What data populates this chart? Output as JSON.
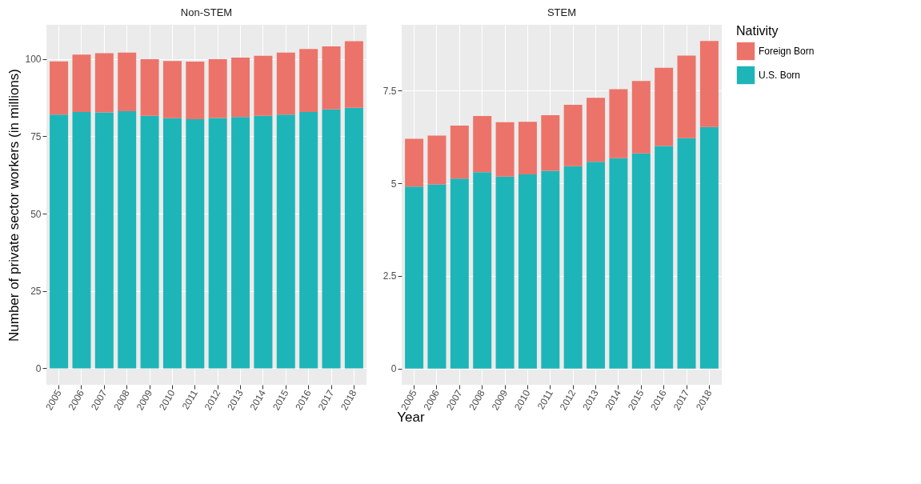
{
  "chart_data": [
    {
      "type": "bar",
      "title": "Non-STEM",
      "ylabel": "Number of private sector workers (in millions)",
      "xlabel": "Year",
      "stacked": true,
      "grid": true,
      "legend": "right",
      "categories": [
        "2005",
        "2006",
        "2007",
        "2008",
        "2009",
        "2010",
        "2011",
        "2012",
        "2013",
        "2014",
        "2015",
        "2016",
        "2017",
        "2018"
      ],
      "ylim": [
        -5.3,
        111
      ],
      "yticks": [
        0,
        25,
        50,
        75,
        100
      ],
      "series": [
        {
          "name": "U.S. Born",
          "color": "#1eb5b8",
          "values": [
            82.0,
            82.8,
            82.7,
            83.1,
            81.6,
            80.8,
            80.5,
            80.9,
            81.2,
            81.6,
            82.0,
            82.8,
            83.7,
            84.2
          ]
        },
        {
          "name": "Foreign Born",
          "color": "#ec7369",
          "values": [
            17.2,
            18.6,
            19.1,
            18.9,
            18.3,
            18.5,
            18.6,
            19.0,
            19.2,
            19.4,
            20.0,
            20.4,
            20.3,
            21.5
          ]
        }
      ]
    },
    {
      "type": "bar",
      "title": "STEM",
      "legend_title": "Nativity",
      "stacked": true,
      "grid": true,
      "legend": "right",
      "categories": [
        "2005",
        "2006",
        "2007",
        "2008",
        "2009",
        "2010",
        "2011",
        "2012",
        "2013",
        "2014",
        "2015",
        "2016",
        "2017",
        "2018"
      ],
      "ylim": [
        -0.44,
        9.28
      ],
      "yticks": [
        0,
        2.5,
        5,
        7.5
      ],
      "series": [
        {
          "name": "U.S. Born",
          "color": "#1eb5b8",
          "values": [
            4.91,
            4.97,
            5.13,
            5.3,
            5.18,
            5.24,
            5.34,
            5.46,
            5.58,
            5.68,
            5.81,
            6.01,
            6.22,
            6.52
          ]
        },
        {
          "name": "Foreign Born",
          "color": "#ec7369",
          "values": [
            1.29,
            1.32,
            1.43,
            1.52,
            1.47,
            1.42,
            1.5,
            1.66,
            1.73,
            1.86,
            1.95,
            2.11,
            2.23,
            2.32
          ]
        }
      ]
    }
  ]
}
